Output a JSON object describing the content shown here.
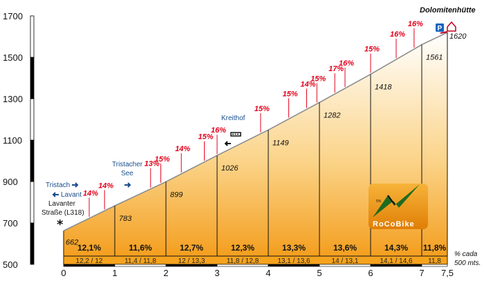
{
  "chart_data": {
    "type": "area",
    "title": "Dolomitenhütte",
    "x_unit_note": [
      "% cada",
      "500 mts."
    ],
    "ylim": [
      500,
      1700
    ],
    "xlim": [
      0,
      7.5
    ],
    "yticks": [
      "500",
      "700",
      "900",
      "1100",
      "1300",
      "1500",
      "1700"
    ],
    "xticks": [
      "0",
      "1",
      "2",
      "3",
      "4",
      "5",
      "6",
      "7",
      "7,5"
    ],
    "profile": {
      "x": [
        0,
        1,
        2,
        3,
        4,
        5,
        6,
        7,
        7.5
      ],
      "y": [
        662,
        783,
        899,
        1026,
        1149,
        1282,
        1418,
        1561,
        1620
      ]
    },
    "elevation_labels": [
      "662",
      "783",
      "899",
      "1026",
      "1149",
      "1282",
      "1418",
      "1561",
      "1620"
    ],
    "segments": [
      {
        "avg": "12,1%",
        "halves": "12,2 / 12"
      },
      {
        "avg": "11,6%",
        "halves": "11,4 / 11,8"
      },
      {
        "avg": "12,7%",
        "halves": "12 / 13,3"
      },
      {
        "avg": "12,3%",
        "halves": "11,8 / 12,8"
      },
      {
        "avg": "13,3%",
        "halves": "13,1 / 13,6"
      },
      {
        "avg": "13,6%",
        "halves": "14 / 13,1"
      },
      {
        "avg": "14,3%",
        "halves": "14,1 / 14,6"
      },
      {
        "avg": "11,8%",
        "halves": "11,8"
      }
    ],
    "grade_markers": [
      {
        "x": 0.5,
        "label": "14%"
      },
      {
        "x": 0.8,
        "label": "14%"
      },
      {
        "x": 1.7,
        "label": "13%"
      },
      {
        "x": 1.9,
        "label": "15%"
      },
      {
        "x": 2.3,
        "label": "14%"
      },
      {
        "x": 2.75,
        "label": "15%"
      },
      {
        "x": 3.0,
        "label": "16%"
      },
      {
        "x": 3.85,
        "label": "15%"
      },
      {
        "x": 4.4,
        "label": "15%"
      },
      {
        "x": 4.75,
        "label": "14%"
      },
      {
        "x": 4.95,
        "label": "15%"
      },
      {
        "x": 5.3,
        "label": "17%"
      },
      {
        "x": 5.5,
        "label": "16%"
      },
      {
        "x": 6.0,
        "label": "15%"
      },
      {
        "x": 6.5,
        "label": "16%"
      },
      {
        "x": 6.85,
        "label": "16%"
      }
    ],
    "places": {
      "tristach": "Tristach",
      "lavant": "Lavant",
      "lavanter_1": "Lavanter",
      "lavanter_2": "Straße (L318)",
      "tristacher_1": "Tristacher",
      "tristacher_2": "See",
      "kreithof": "Kreithof"
    },
    "parking_label": "P",
    "logo": "RoCoBike"
  }
}
